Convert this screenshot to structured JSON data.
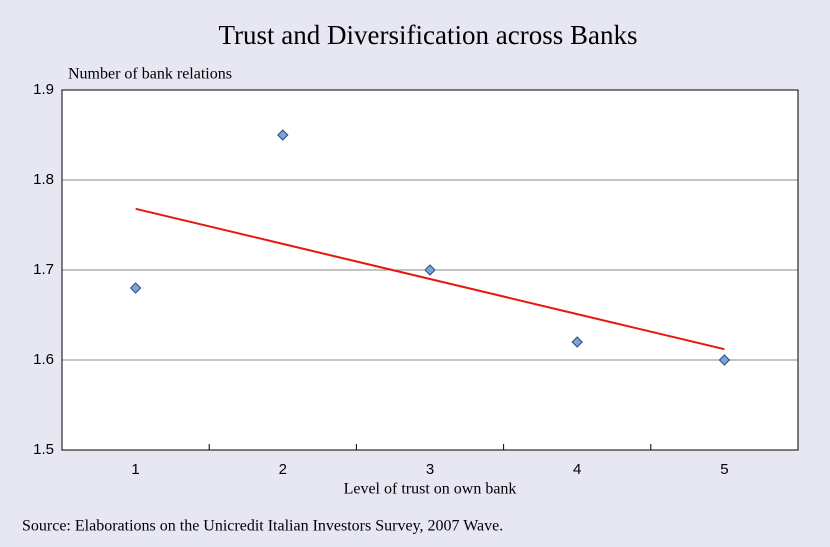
{
  "chart_data": {
    "type": "scatter",
    "title": "Trust and Diversification across Banks",
    "y_label": "Number of bank relations",
    "x_label": "Level of trust on own bank",
    "source": "Source: Elaborations on the Unicredit Italian Investors Survey, 2007 Wave.",
    "categories": [
      "1",
      "2",
      "3",
      "4",
      "5"
    ],
    "values": [
      1.68,
      1.85,
      1.7,
      1.62,
      1.6
    ],
    "color": "#7fa3d6",
    "trendline": {
      "values": [
        1.768,
        1.729,
        1.69,
        1.651,
        1.612
      ],
      "color": "#e8160c"
    },
    "ylim": [
      1.5,
      1.9
    ],
    "yticks": [
      1.5,
      1.6,
      1.7,
      1.8,
      1.9
    ],
    "grid": true
  }
}
